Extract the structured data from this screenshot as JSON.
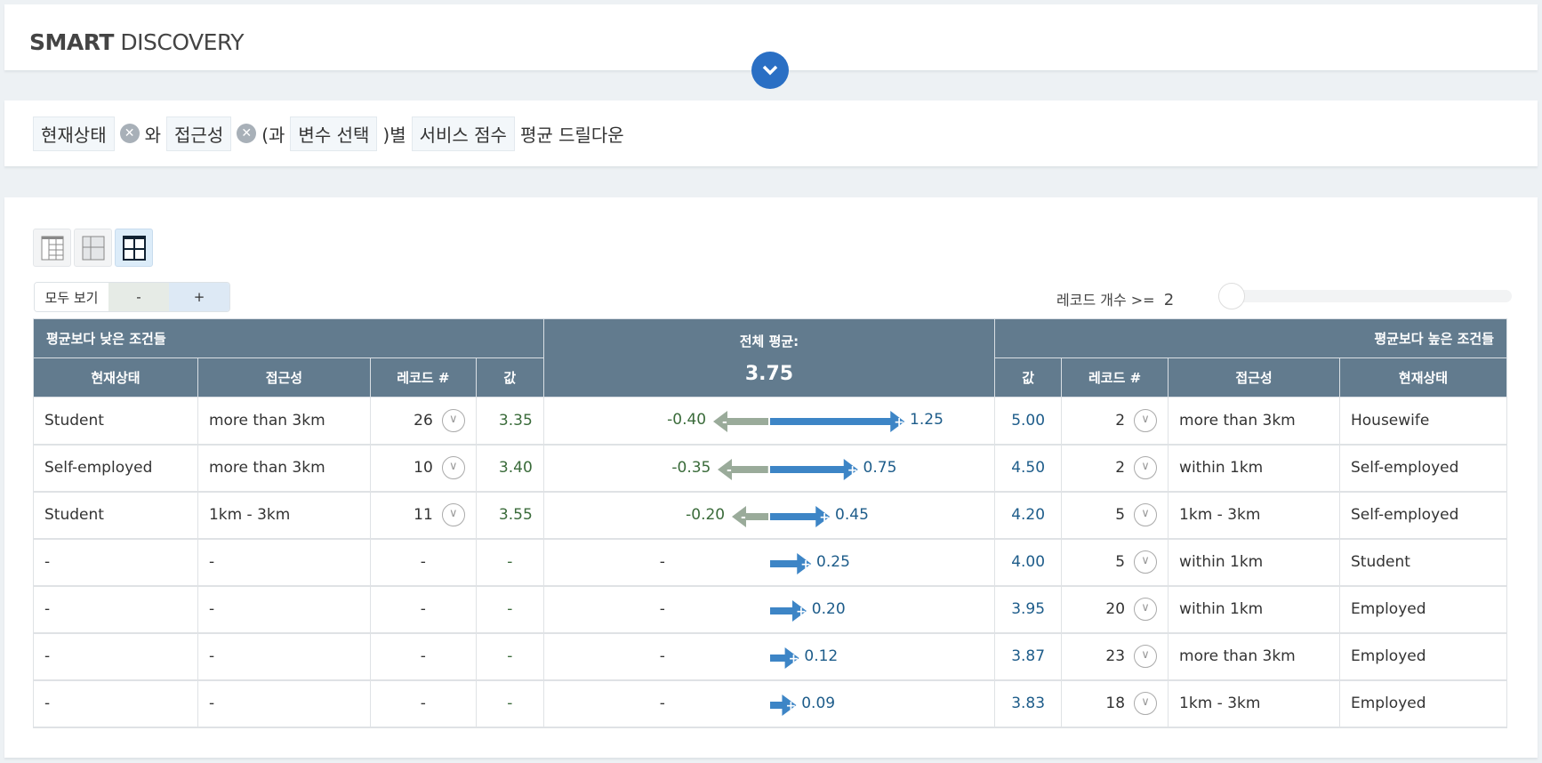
{
  "header": {
    "title_bold": "SMART",
    "title_rest": " DISCOVERY"
  },
  "filter": {
    "chip1": "현재상태",
    "and1": "와",
    "chip2": "접근성",
    "and2": "(과",
    "chip3": "변수 선택",
    "suffix1": ")별",
    "chip4": "서비스 점수",
    "suffix2": "평균 드릴다운"
  },
  "controls": {
    "show_all": "모두 보기",
    "minus": "-",
    "plus": "+",
    "record_label": "레코드 개수 >=",
    "record_min": "2"
  },
  "colors": {
    "header_bg": "#627b8e",
    "positive": "#3d85c6",
    "negative": "#9aab9a",
    "accent": "#2a6fc4"
  },
  "table": {
    "lower_title": "평균보다 낮은 조건들",
    "overall_title": "전체 평균:",
    "overall_value": "3.75",
    "higher_title": "평균보다 높은 조건들",
    "lower_cols": [
      "현재상태",
      "접근성",
      "레코드 #",
      "값"
    ],
    "higher_cols": [
      "값",
      "레코드 #",
      "접근성",
      "현재상태"
    ],
    "rows": [
      {
        "l_status": "Student",
        "l_access": "more than 3km",
        "l_count": "26",
        "l_value": "3.35",
        "neg": "-0.40",
        "pos": "1.25",
        "h_value": "5.00",
        "h_count": "2",
        "h_access": "more than 3km",
        "h_status": "Housewife"
      },
      {
        "l_status": "Self-employed",
        "l_access": "more than 3km",
        "l_count": "10",
        "l_value": "3.40",
        "neg": "-0.35",
        "pos": "0.75",
        "h_value": "4.50",
        "h_count": "2",
        "h_access": "within 1km",
        "h_status": "Self-employed"
      },
      {
        "l_status": "Student",
        "l_access": "1km - 3km",
        "l_count": "11",
        "l_value": "3.55",
        "neg": "-0.20",
        "pos": "0.45",
        "h_value": "4.20",
        "h_count": "5",
        "h_access": "1km - 3km",
        "h_status": "Self-employed"
      },
      {
        "l_status": "-",
        "l_access": "-",
        "l_count": "-",
        "l_value": "-",
        "neg": "-",
        "pos": "0.25",
        "h_value": "4.00",
        "h_count": "5",
        "h_access": "within 1km",
        "h_status": "Student"
      },
      {
        "l_status": "-",
        "l_access": "-",
        "l_count": "-",
        "l_value": "-",
        "neg": "-",
        "pos": "0.20",
        "h_value": "3.95",
        "h_count": "20",
        "h_access": "within 1km",
        "h_status": "Employed"
      },
      {
        "l_status": "-",
        "l_access": "-",
        "l_count": "-",
        "l_value": "-",
        "neg": "-",
        "pos": "0.12",
        "h_value": "3.87",
        "h_count": "23",
        "h_access": "more than 3km",
        "h_status": "Employed"
      },
      {
        "l_status": "-",
        "l_access": "-",
        "l_count": "-",
        "l_value": "-",
        "neg": "-",
        "pos": "0.09",
        "h_value": "3.83",
        "h_count": "18",
        "h_access": "1km - 3km",
        "h_status": "Employed"
      }
    ]
  }
}
